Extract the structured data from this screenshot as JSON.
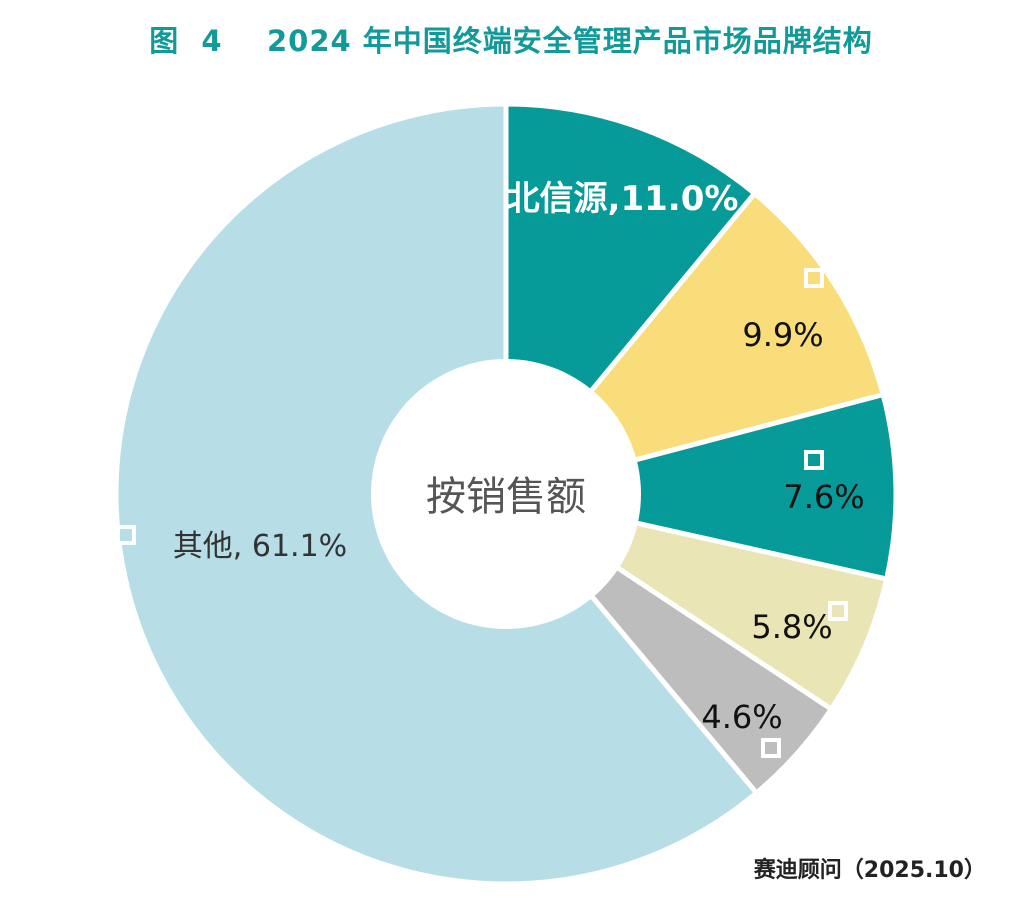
{
  "title": "图  4    2024 年中国终端安全管理产品市场品牌结构",
  "source": "赛迪顾问（2025.10）",
  "chart_data": {
    "type": "pie",
    "variant": "donut",
    "center_label": "按销售额",
    "start_angle": "12 o'clock",
    "direction": "clockwise",
    "legend": "none",
    "series": [
      {
        "slices": [
          {
            "label": "北信源",
            "value": 11.0,
            "display": "北信源,11.0%",
            "color": "#069a99",
            "text_color": "#ffffff",
            "bold": true,
            "marker": false
          },
          {
            "label": "",
            "value": 9.9,
            "display": "9.9%",
            "color": "#f9dd7a",
            "text_color": "#111111",
            "bold": false,
            "marker": true
          },
          {
            "label": "",
            "value": 7.6,
            "display": "7.6%",
            "color": "#069a99",
            "text_color": "#111111",
            "bold": false,
            "marker": true
          },
          {
            "label": "",
            "value": 5.8,
            "display": "5.8%",
            "color": "#e9e5b4",
            "text_color": "#111111",
            "bold": false,
            "marker": true
          },
          {
            "label": "",
            "value": 4.6,
            "display": "4.6%",
            "color": "#bdbdbd",
            "text_color": "#111111",
            "bold": false,
            "marker": true
          },
          {
            "label": "其他",
            "value": 61.1,
            "display": "其他, 61.1%",
            "color": "#b7dde6",
            "text_color": "#333333",
            "bold": false,
            "marker": true
          }
        ]
      }
    ],
    "center_text_color": "#555555",
    "title_color": "#12999a"
  }
}
